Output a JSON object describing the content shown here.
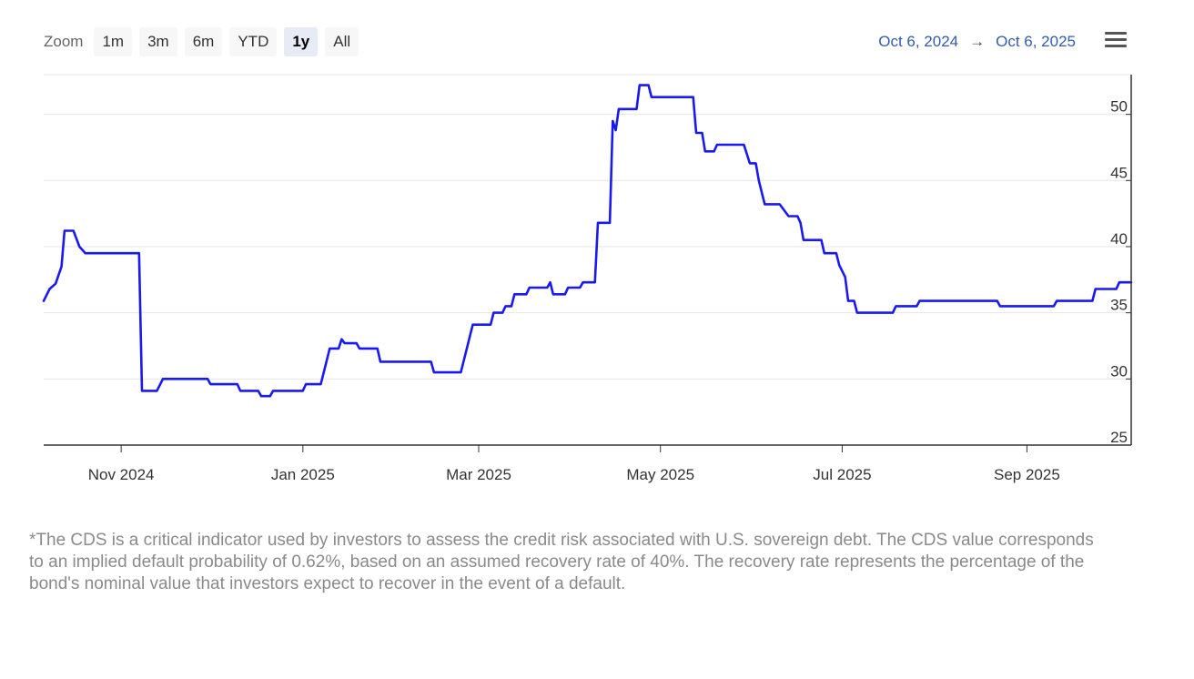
{
  "toolbar": {
    "zoom_label": "Zoom",
    "buttons": [
      "1m",
      "3m",
      "6m",
      "YTD",
      "1y",
      "All"
    ],
    "active": "1y"
  },
  "range": {
    "from": "Oct 6, 2024",
    "arrow": "→",
    "to": "Oct 6, 2025"
  },
  "icons": {
    "menu": "hamburger-menu-icon"
  },
  "colors": {
    "series": "#1a1aee",
    "range_text": "#335cad",
    "footnote": "#8a8a8a"
  },
  "chart_data": {
    "type": "line",
    "title": "",
    "xlabel": "",
    "ylabel": "",
    "ylim": [
      25,
      53
    ],
    "yticks": [
      25,
      30,
      35,
      40,
      45,
      50
    ],
    "xlim": [
      "2024-10-06",
      "2025-10-06"
    ],
    "xticks": [
      {
        "date": "2024-11-01",
        "label": "Nov 2024"
      },
      {
        "date": "2025-01-01",
        "label": "Jan 2025"
      },
      {
        "date": "2025-03-01",
        "label": "Mar 2025"
      },
      {
        "date": "2025-05-01",
        "label": "May 2025"
      },
      {
        "date": "2025-07-01",
        "label": "Jul 2025"
      },
      {
        "date": "2025-09-01",
        "label": "Sep 2025"
      }
    ],
    "y_axis_position": "right",
    "grid": true,
    "legend": "none",
    "series": [
      {
        "points": [
          [
            "2024-10-06",
            35.9
          ],
          [
            "2024-10-08",
            36.8
          ],
          [
            "2024-10-10",
            37.2
          ],
          [
            "2024-10-12",
            38.5
          ],
          [
            "2024-10-13",
            41.2
          ],
          [
            "2024-10-16",
            41.2
          ],
          [
            "2024-10-18",
            40.0
          ],
          [
            "2024-10-20",
            39.5
          ],
          [
            "2024-11-07",
            39.5
          ],
          [
            "2024-11-08",
            29.1
          ],
          [
            "2024-11-13",
            29.1
          ],
          [
            "2024-11-15",
            30.0
          ],
          [
            "2024-11-30",
            30.0
          ],
          [
            "2024-12-01",
            29.6
          ],
          [
            "2024-12-10",
            29.6
          ],
          [
            "2024-12-11",
            29.1
          ],
          [
            "2024-12-17",
            29.1
          ],
          [
            "2024-12-18",
            28.7
          ],
          [
            "2024-12-21",
            28.7
          ],
          [
            "2024-12-22",
            29.1
          ],
          [
            "2025-01-01",
            29.1
          ],
          [
            "2025-01-02",
            29.6
          ],
          [
            "2025-01-07",
            29.6
          ],
          [
            "2025-01-10",
            32.3
          ],
          [
            "2025-01-13",
            32.3
          ],
          [
            "2025-01-14",
            33.0
          ],
          [
            "2025-01-15",
            32.7
          ],
          [
            "2025-01-19",
            32.7
          ],
          [
            "2025-01-20",
            32.3
          ],
          [
            "2025-01-26",
            32.3
          ],
          [
            "2025-01-27",
            31.3
          ],
          [
            "2025-02-13",
            31.3
          ],
          [
            "2025-02-14",
            30.5
          ],
          [
            "2025-02-23",
            30.5
          ],
          [
            "2025-02-27",
            34.1
          ],
          [
            "2025-03-05",
            34.1
          ],
          [
            "2025-03-06",
            35.0
          ],
          [
            "2025-03-09",
            35.0
          ],
          [
            "2025-03-10",
            35.5
          ],
          [
            "2025-03-12",
            35.5
          ],
          [
            "2025-03-13",
            36.4
          ],
          [
            "2025-03-17",
            36.4
          ],
          [
            "2025-03-18",
            36.9
          ],
          [
            "2025-03-24",
            36.9
          ],
          [
            "2025-03-25",
            37.3
          ],
          [
            "2025-03-26",
            36.4
          ],
          [
            "2025-03-30",
            36.4
          ],
          [
            "2025-03-31",
            36.9
          ],
          [
            "2025-04-04",
            36.9
          ],
          [
            "2025-04-05",
            37.3
          ],
          [
            "2025-04-09",
            37.3
          ],
          [
            "2025-04-10",
            41.8
          ],
          [
            "2025-04-14",
            41.8
          ],
          [
            "2025-04-15",
            49.5
          ],
          [
            "2025-04-16",
            48.8
          ],
          [
            "2025-04-17",
            50.4
          ],
          [
            "2025-04-23",
            50.4
          ],
          [
            "2025-04-24",
            52.2
          ],
          [
            "2025-04-27",
            52.2
          ],
          [
            "2025-04-28",
            51.3
          ],
          [
            "2025-05-12",
            51.3
          ],
          [
            "2025-05-13",
            48.6
          ],
          [
            "2025-05-15",
            48.6
          ],
          [
            "2025-05-16",
            47.2
          ],
          [
            "2025-05-19",
            47.2
          ],
          [
            "2025-05-20",
            47.7
          ],
          [
            "2025-05-29",
            47.7
          ],
          [
            "2025-05-31",
            46.3
          ],
          [
            "2025-06-02",
            46.3
          ],
          [
            "2025-06-03",
            45.0
          ],
          [
            "2025-06-05",
            43.2
          ],
          [
            "2025-06-10",
            43.2
          ],
          [
            "2025-06-13",
            42.3
          ],
          [
            "2025-06-16",
            42.3
          ],
          [
            "2025-06-17",
            41.8
          ],
          [
            "2025-06-18",
            40.5
          ],
          [
            "2025-06-24",
            40.5
          ],
          [
            "2025-06-25",
            39.5
          ],
          [
            "2025-06-29",
            39.5
          ],
          [
            "2025-06-30",
            38.6
          ],
          [
            "2025-07-02",
            37.7
          ],
          [
            "2025-07-03",
            35.9
          ],
          [
            "2025-07-05",
            35.9
          ],
          [
            "2025-07-06",
            35.0
          ],
          [
            "2025-07-18",
            35.0
          ],
          [
            "2025-07-19",
            35.5
          ],
          [
            "2025-07-26",
            35.5
          ],
          [
            "2025-07-27",
            35.9
          ],
          [
            "2025-08-22",
            35.9
          ],
          [
            "2025-08-23",
            35.5
          ],
          [
            "2025-09-10",
            35.5
          ],
          [
            "2025-09-11",
            35.9
          ],
          [
            "2025-09-23",
            35.9
          ],
          [
            "2025-09-24",
            36.8
          ],
          [
            "2025-10-01",
            36.8
          ],
          [
            "2025-10-02",
            37.3
          ],
          [
            "2025-10-06",
            37.3
          ]
        ]
      }
    ]
  },
  "footnote": "*The CDS is a critical indicator used by investors to assess the credit risk associated with U.S. sovereign debt. The CDS value corresponds to an implied default probability of 0.62%, based on an assumed recovery rate of 40%. The recovery rate represents the percentage of the bond's nominal value that investors expect to recover in the event of a default."
}
